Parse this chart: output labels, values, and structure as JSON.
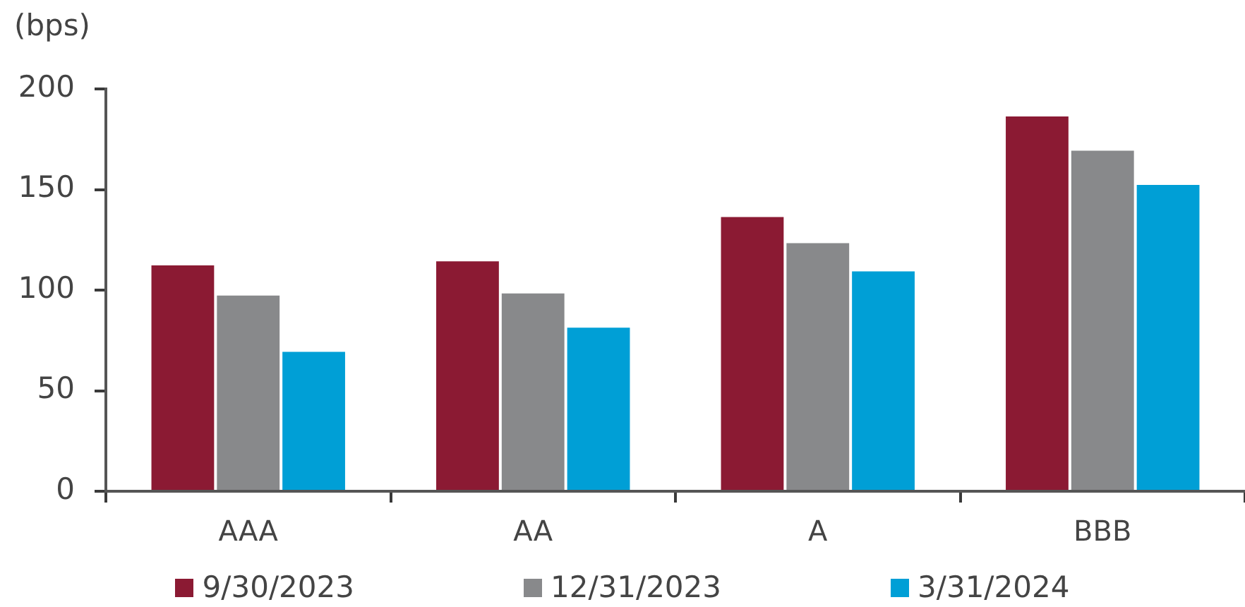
{
  "chart_data": {
    "type": "bar",
    "ylabel": "(bps)",
    "categories": [
      "AAA",
      "AA",
      "A",
      "BBB"
    ],
    "series": [
      {
        "name": "9/30/2023",
        "color": "#8b1a33",
        "values": [
          113,
          115,
          137,
          187
        ]
      },
      {
        "name": "12/31/2023",
        "color": "#88898b",
        "values": [
          98,
          99,
          124,
          170
        ]
      },
      {
        "name": "3/31/2024",
        "color": "#009fd6",
        "values": [
          70,
          82,
          110,
          153
        ]
      }
    ],
    "ylim": [
      0,
      200
    ],
    "yticks": [
      0,
      50,
      100,
      150,
      200
    ],
    "legend": "bottom"
  }
}
